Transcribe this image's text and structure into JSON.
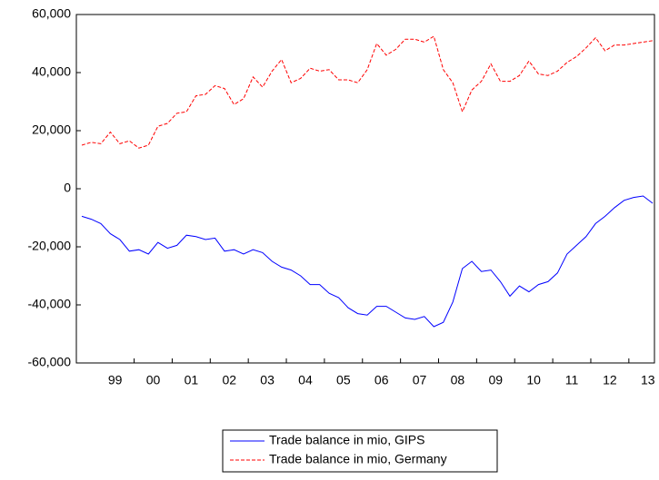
{
  "chart_data": {
    "type": "line",
    "categories": [
      null,
      null,
      null,
      "99",
      null,
      null,
      null,
      "00",
      null,
      null,
      null,
      "01",
      null,
      null,
      null,
      "02",
      null,
      null,
      null,
      "03",
      null,
      null,
      null,
      "04",
      null,
      null,
      null,
      "05",
      null,
      null,
      null,
      "06",
      null,
      null,
      null,
      "07",
      null,
      null,
      null,
      "08",
      null,
      null,
      null,
      "09",
      null,
      null,
      null,
      "10",
      null,
      null,
      null,
      "11",
      null,
      null,
      null,
      "12",
      null,
      null,
      null,
      "13",
      null
    ],
    "series": [
      {
        "name": "Trade balance in mio, GIPS",
        "color": "#0000ff",
        "style": "solid",
        "values": [
          -9500,
          -10500,
          -12000,
          -15500,
          -17500,
          -21500,
          -21000,
          -22500,
          -18500,
          -20500,
          -19500,
          -16000,
          -16500,
          -17500,
          -17000,
          -21500,
          -21000,
          -22500,
          -21000,
          -22000,
          -25000,
          -27000,
          -28000,
          -30000,
          -33000,
          -33000,
          -36000,
          -37500,
          -41000,
          -43000,
          -43500,
          -40500,
          -40500,
          -42500,
          -44500,
          -45000,
          -44000,
          -47500,
          -46000,
          -39000,
          -27500,
          -25000,
          -28500,
          -28000,
          -32000,
          -37000,
          -33500,
          -35500,
          -33000,
          -32000,
          -29000,
          -22500,
          -19500,
          -16500,
          -12000,
          -9500,
          -6500,
          -4000,
          -3000,
          -2500,
          -5000
        ]
      },
      {
        "name": "Trade balance in mio, Germany",
        "color": "#ff0000",
        "style": "dashed",
        "values": [
          15000,
          16000,
          15500,
          19500,
          15500,
          16500,
          14000,
          15000,
          21500,
          22500,
          26000,
          26500,
          32000,
          32500,
          35500,
          34500,
          29000,
          31000,
          38500,
          35000,
          40500,
          44500,
          36500,
          38000,
          41500,
          40500,
          41000,
          37500,
          37500,
          36500,
          41000,
          50000,
          46000,
          48000,
          51500,
          51500,
          50500,
          52500,
          41000,
          36500,
          26500,
          34000,
          37000,
          43000,
          37000,
          37000,
          39000,
          44000,
          39500,
          39000,
          40500,
          43500,
          45500,
          48500,
          52000,
          47500,
          49500,
          49500,
          50000,
          50500,
          51000
        ]
      }
    ],
    "ylim": [
      -60000,
      60000
    ],
    "yticks": [
      {
        "value": -60000,
        "label": "-60,000"
      },
      {
        "value": -40000,
        "label": "-40,000"
      },
      {
        "value": -20000,
        "label": "-20,000"
      },
      0,
      {
        "value": 20000,
        "label": "20,000"
      },
      {
        "value": 40000,
        "label": "40,000"
      },
      {
        "value": 60000,
        "label": "60,000"
      }
    ],
    "grid": false,
    "legend": "bottom"
  }
}
